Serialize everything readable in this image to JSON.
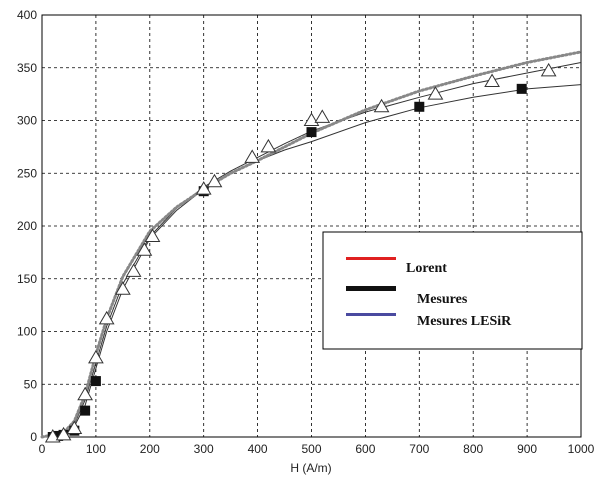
{
  "chart_data": {
    "type": "line",
    "title": "",
    "xlabel": "H (A/m)",
    "ylabel": "",
    "xlim": [
      0,
      1000
    ],
    "ylim": [
      0,
      400
    ],
    "x_ticks": [
      0,
      100,
      200,
      300,
      400,
      500,
      600,
      700,
      800,
      900,
      1000
    ],
    "y_ticks": [
      0,
      50,
      100,
      150,
      200,
      250,
      300,
      350,
      400
    ],
    "grid": true,
    "legend_position": "right",
    "legend": [
      {
        "label": "Lorent",
        "color": "#e02020"
      },
      {
        "label": "Mesures",
        "color": "#111111"
      },
      {
        "label": "Mesures  LESiR",
        "color": "#4a4aa0"
      }
    ],
    "series": [
      {
        "color": "#333333",
        "style": "solid",
        "x": [
          0,
          40,
          60,
          80,
          100,
          120,
          150,
          200,
          250,
          300,
          350,
          400,
          450,
          500,
          600,
          700,
          800,
          900,
          1000
        ],
        "y": [
          0,
          3,
          12,
          35,
          70,
          105,
          145,
          190,
          217,
          237,
          252,
          265,
          278,
          290,
          308,
          322,
          335,
          345,
          355
        ]
      },
      {
        "color": "#333333",
        "style": "solid",
        "x": [
          0,
          40,
          60,
          80,
          100,
          120,
          150,
          200,
          250,
          300,
          350,
          400,
          450,
          500,
          600,
          700,
          800,
          900,
          1000
        ],
        "y": [
          0,
          2,
          10,
          30,
          65,
          100,
          140,
          188,
          215,
          235,
          250,
          262,
          272,
          280,
          298,
          312,
          322,
          330,
          334
        ]
      },
      {
        "color": "#888888",
        "style": "dotted",
        "x": [
          0,
          40,
          60,
          80,
          100,
          120,
          150,
          200,
          250,
          300,
          350,
          400,
          450,
          500,
          600,
          700,
          800,
          900,
          1000
        ],
        "y": [
          0,
          4,
          15,
          40,
          78,
          112,
          152,
          195,
          218,
          235,
          250,
          262,
          275,
          288,
          310,
          328,
          342,
          355,
          365
        ]
      },
      {
        "marker": "square",
        "color": "#111111",
        "x": [
          20,
          30,
          40,
          60,
          80,
          100,
          300,
          500,
          700,
          890
        ],
        "y": [
          0,
          1,
          2,
          6,
          25,
          53,
          233,
          289,
          313,
          330
        ]
      },
      {
        "marker": "triangle",
        "color": "#333333",
        "x": [
          20,
          40,
          60,
          80,
          100,
          120,
          150,
          170,
          190,
          205,
          300,
          320,
          390,
          420,
          500,
          520,
          630,
          730,
          835,
          940
        ],
        "y": [
          0,
          2,
          8,
          40,
          75,
          112,
          140,
          157,
          177,
          190,
          235,
          242,
          265,
          275,
          300,
          303,
          313,
          325,
          337,
          347
        ]
      }
    ]
  }
}
